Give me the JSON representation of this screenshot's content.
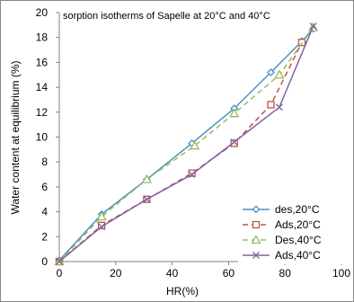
{
  "chart_data": {
    "type": "line",
    "title": "sorption isotherms of Sapelle at 20°C and 40°C",
    "xlabel": "HR(%)",
    "ylabel": "Water content at equilibrium (%)",
    "xlim": [
      0,
      100
    ],
    "ylim": [
      0,
      20
    ],
    "xticks": [
      0,
      20,
      40,
      60,
      80,
      100
    ],
    "yticks": [
      0,
      2,
      4,
      6,
      8,
      10,
      12,
      14,
      16,
      18,
      20
    ],
    "grid": false,
    "legend_position": "bottom-right",
    "series": [
      {
        "name": "des,20°C",
        "color": "#4a90c8",
        "dash": "solid",
        "marker": "diamond",
        "x": [
          0,
          15,
          31,
          47,
          62,
          75,
          86,
          90
        ],
        "y": [
          0.1,
          3.8,
          6.6,
          9.5,
          12.3,
          15.2,
          17.7,
          18.7
        ]
      },
      {
        "name": "Ads,20°C",
        "color": "#c0504d",
        "dash": "dashed",
        "marker": "square",
        "x": [
          0,
          15,
          31,
          47,
          62,
          75,
          86
        ],
        "y": [
          0.0,
          2.9,
          5.0,
          7.1,
          9.5,
          12.6,
          17.6
        ]
      },
      {
        "name": "Des,40°C",
        "color": "#9bbb59",
        "dash": "dashed",
        "marker": "triangle",
        "x": [
          0,
          15,
          31,
          48,
          62,
          78,
          90
        ],
        "y": [
          0.0,
          3.6,
          6.6,
          9.3,
          11.9,
          15.0,
          18.8
        ]
      },
      {
        "name": "Ads,40°C",
        "color": "#8064a2",
        "dash": "solid",
        "marker": "x",
        "x": [
          0,
          15,
          31,
          47,
          62,
          78,
          90
        ],
        "y": [
          0.0,
          2.8,
          5.0,
          7.0,
          9.6,
          12.4,
          18.9
        ]
      }
    ]
  }
}
